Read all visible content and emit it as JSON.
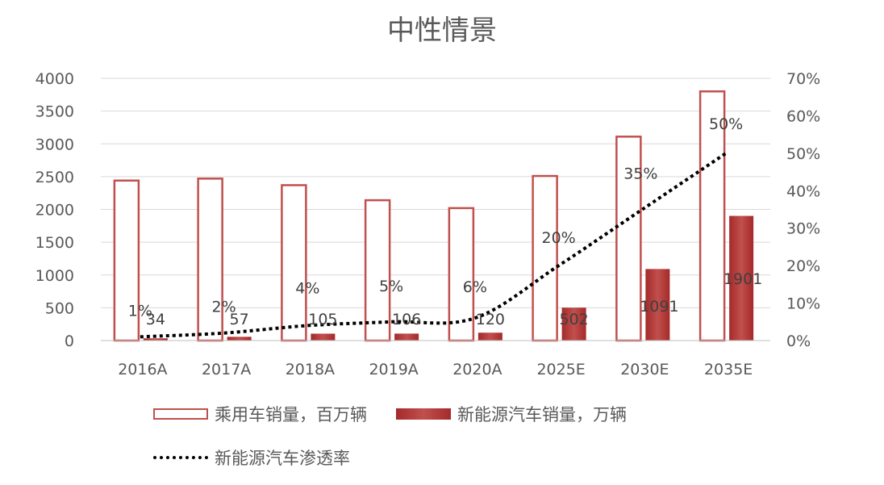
{
  "chart_data": {
    "type": "bar",
    "title": "中性情景",
    "categories": [
      "2016A",
      "2017A",
      "2018A",
      "2019A",
      "2020A",
      "2025E",
      "2030E",
      "2035E"
    ],
    "series": [
      {
        "name": "乘用车销量，百万辆",
        "kind": "bar-outline",
        "axis": "left",
        "values": [
          2440,
          2470,
          2370,
          2140,
          2020,
          2510,
          3110,
          3800
        ]
      },
      {
        "name": "新能源汽车销量，万辆",
        "kind": "bar-filled",
        "axis": "left",
        "values": [
          34,
          57,
          105,
          106,
          120,
          502,
          1091,
          1901
        ]
      },
      {
        "name": "新能源汽车渗透率",
        "kind": "line-dotted",
        "axis": "right",
        "values": [
          1,
          2,
          4,
          5,
          6,
          20,
          35,
          50
        ]
      }
    ],
    "data_labels": {
      "ev_sales": [
        "34",
        "57",
        "105",
        "106",
        "120",
        "502",
        "1091",
        "1901"
      ],
      "penetration": [
        "1%",
        "2%",
        "4%",
        "5%",
        "6%",
        "20%",
        "35%",
        "50%"
      ]
    },
    "y_left": {
      "ylim": [
        0,
        4000
      ],
      "ticks": [
        "0",
        "500",
        "1000",
        "1500",
        "2000",
        "2500",
        "3000",
        "3500",
        "4000"
      ]
    },
    "y_right": {
      "ylim": [
        0,
        70
      ],
      "ticks": [
        "0%",
        "10%",
        "20%",
        "30%",
        "40%",
        "50%",
        "60%",
        "70%"
      ]
    },
    "grid": true,
    "legend_position": "bottom",
    "colors": {
      "bar": "#c0504d",
      "bar_dark": "#a52a2a",
      "line": "#000000",
      "grid": "#d9d9d9",
      "text": "#595959"
    }
  }
}
